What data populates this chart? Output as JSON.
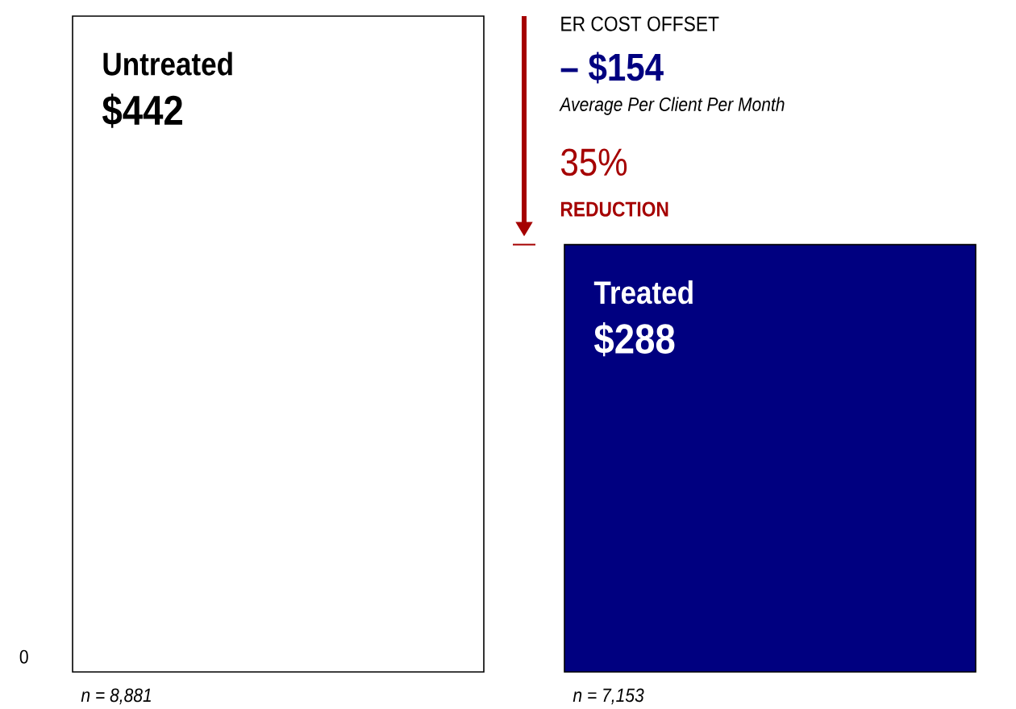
{
  "chart_data": {
    "type": "bar",
    "categories": [
      "Untreated",
      "Treated"
    ],
    "values": [
      442,
      288
    ],
    "value_labels": [
      "$442",
      "$288"
    ],
    "colors": [
      "#ffffff",
      "#000080"
    ],
    "annotations": [
      "ER COST OFFSET",
      "– $154",
      "Average Per Client Per Month",
      "35%",
      "REDUCTION",
      "0",
      "n = 8,881",
      "n = 7,153"
    ]
  }
}
